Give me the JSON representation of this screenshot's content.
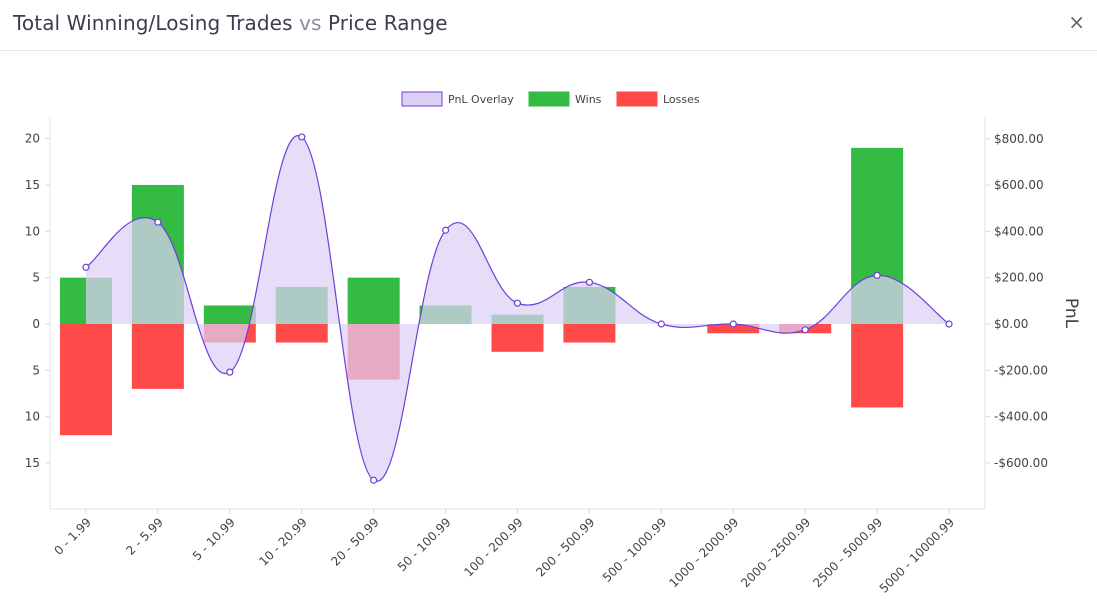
{
  "header": {
    "title_part1": "Total Winning/Losing Trades",
    "title_vs": "vs",
    "title_part2": "Price Range",
    "close_symbol": "×"
  },
  "chart_data": {
    "type": "bar",
    "categories": [
      "0 - 1.99",
      "2 - 5.99",
      "5 - 10.99",
      "10 - 20.99",
      "20 - 50.99",
      "50 - 100.99",
      "100 - 200.99",
      "200 - 500.99",
      "500 - 1000.99",
      "1000 - 2000.99",
      "2000 - 2500.99",
      "2500 - 5000.99",
      "5000 - 10000.99"
    ],
    "series": [
      {
        "name": "Wins",
        "type": "bar",
        "axis": "left",
        "color": "#33bb44",
        "values": [
          5,
          15,
          2,
          4,
          5,
          2,
          1,
          4,
          0,
          0,
          0,
          19,
          0
        ]
      },
      {
        "name": "Losses",
        "type": "bar",
        "axis": "left",
        "color": "#ff4a4a",
        "values": [
          -12,
          -7,
          -2,
          -2,
          -6,
          0,
          -3,
          -2,
          0,
          -1,
          -1,
          -9,
          0
        ]
      },
      {
        "name": "PnL Overlay",
        "type": "area",
        "axis": "right",
        "color": "#6f3fd6",
        "fill": "#dcd0f5",
        "values": [
          245,
          440,
          -208,
          808,
          -675,
          405,
          90,
          180,
          0,
          0,
          -25,
          210,
          0
        ]
      }
    ],
    "left_axis": {
      "ylim": [
        -20,
        22
      ],
      "ticks": [
        20,
        15,
        10,
        5,
        0,
        -5,
        -10,
        -15
      ],
      "tick_labels": [
        "20",
        "15",
        "10",
        "5",
        "0",
        "5",
        "10",
        "15"
      ]
    },
    "right_axis": {
      "label": "PnL",
      "ticks": [
        800,
        600,
        400,
        200,
        0,
        -200,
        -400,
        -600
      ],
      "tick_labels": [
        "$800.00",
        "$600.00",
        "$400.00",
        "$200.00",
        "$0.00",
        "-$200.00",
        "-$400.00",
        "-$600.00"
      ]
    },
    "legend_position": "top-center",
    "grid": false
  }
}
